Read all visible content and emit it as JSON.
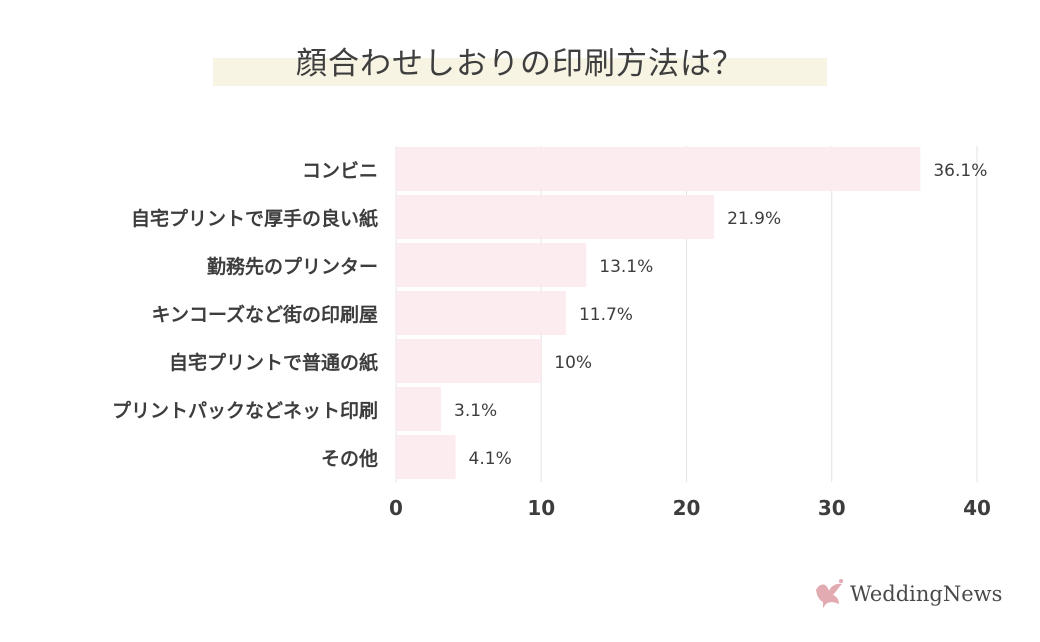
{
  "chart_data": {
    "type": "bar",
    "orientation": "horizontal",
    "title": "顔合わせしおりの印刷方法は？",
    "categories": [
      "コンビニ",
      "自宅プリントで厚手の良い紙",
      "勤務先のプリンター",
      "キンコーズなど街の印刷屋",
      "自宅プリントで普通の紙",
      "プリントパックなどネット印刷",
      "その他"
    ],
    "values": [
      36.1,
      21.9,
      13.1,
      11.7,
      10,
      3.1,
      4.1
    ],
    "value_labels": [
      "36.1%",
      "21.9%",
      "13.1%",
      "11.7%",
      "10%",
      "3.1%",
      "4.1%"
    ],
    "xlim": [
      0,
      40
    ],
    "xticks": [
      0,
      10,
      20,
      30,
      40
    ],
    "grid": true,
    "bar_color": "#fdecef",
    "grid_color": "#e3e3e3"
  },
  "brand": {
    "name": "WeddingNews",
    "icon": "dove-icon",
    "color": "#e2aab1"
  }
}
